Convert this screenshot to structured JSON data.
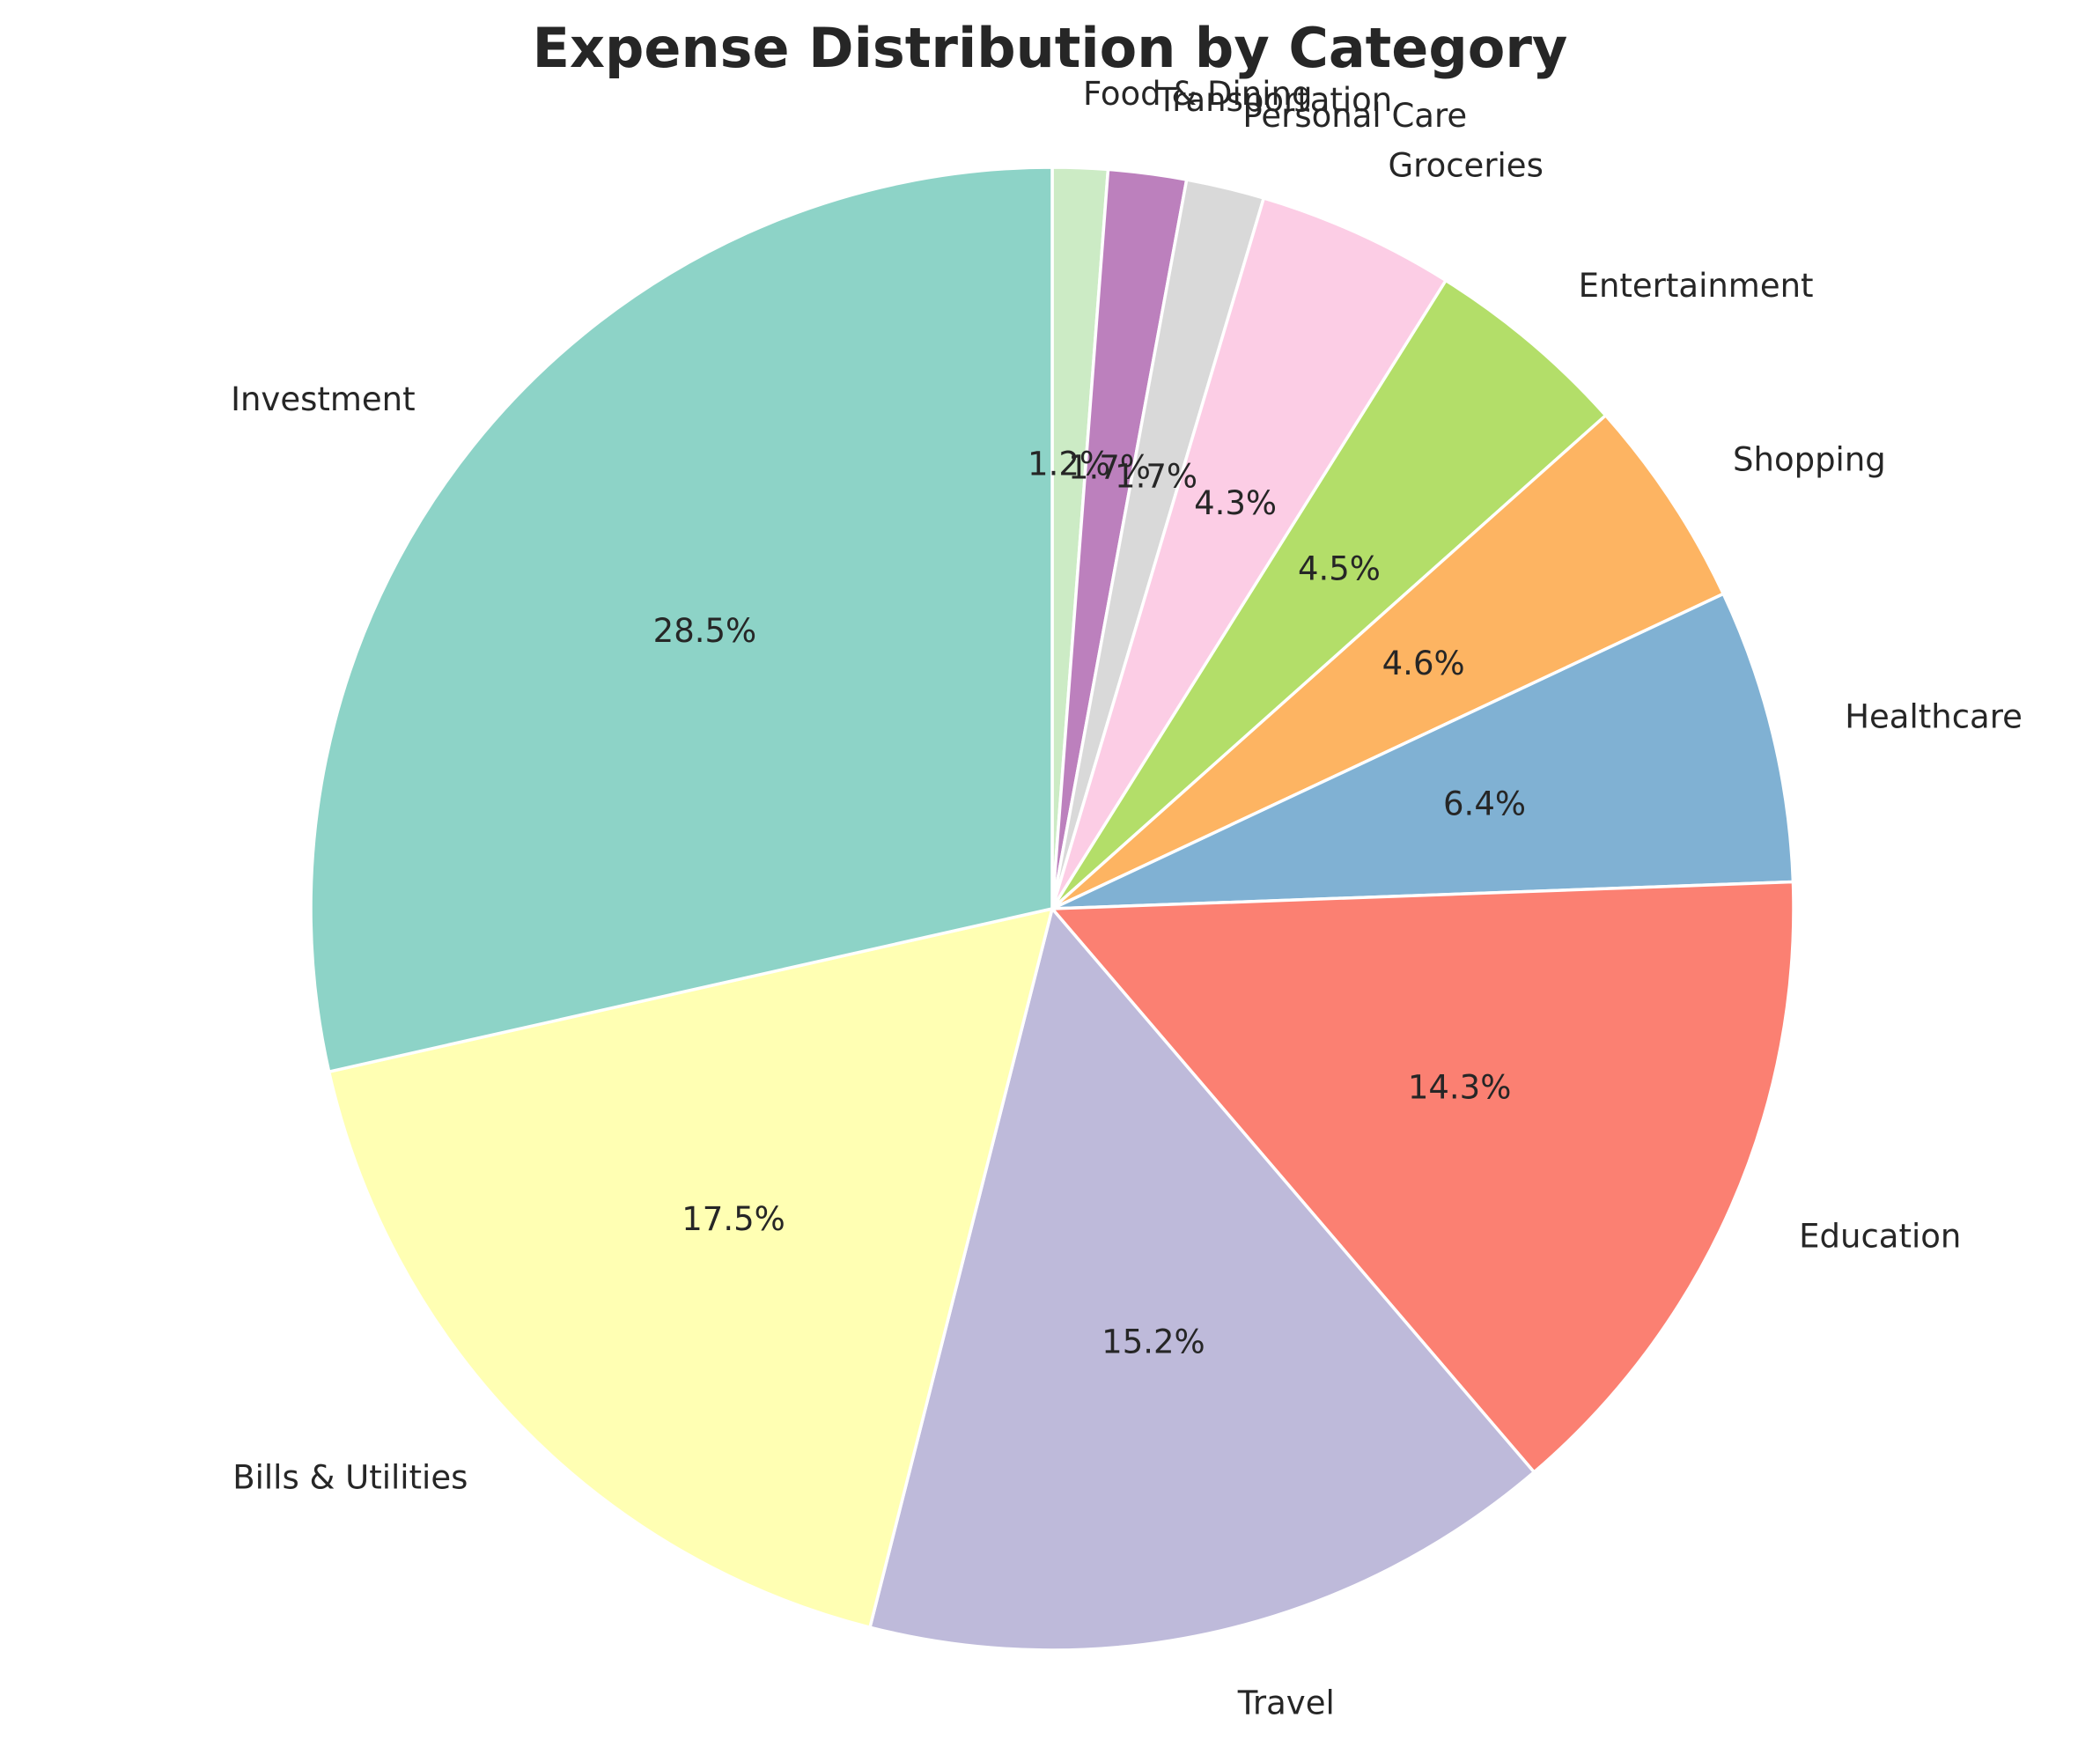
{
  "chart_data": {
    "type": "pie",
    "title": "Expense Distribution by Category",
    "start_angle": 90,
    "direction": "clockwise",
    "slices": [
      {
        "label": "Food & Dining",
        "value": 1.2,
        "pct_label": "1.2%",
        "color": "#ccebc5"
      },
      {
        "label": "Transportation",
        "value": 1.7,
        "pct_label": "1.7%",
        "color": "#bc80bd"
      },
      {
        "label": "Personal Care",
        "value": 1.7,
        "pct_label": "1.7%",
        "color": "#d9d9d9"
      },
      {
        "label": "Groceries",
        "value": 4.3,
        "pct_label": "4.3%",
        "color": "#fccde5"
      },
      {
        "label": "Entertainment",
        "value": 4.5,
        "pct_label": "4.5%",
        "color": "#b3de69"
      },
      {
        "label": "Shopping",
        "value": 4.6,
        "pct_label": "4.6%",
        "color": "#fdb462"
      },
      {
        "label": "Healthcare",
        "value": 6.4,
        "pct_label": "6.4%",
        "color": "#80b1d3"
      },
      {
        "label": "Education",
        "value": 14.3,
        "pct_label": "14.3%",
        "color": "#fb8072"
      },
      {
        "label": "Travel",
        "value": 15.2,
        "pct_label": "15.2%",
        "color": "#bebada"
      },
      {
        "label": "Bills & Utilities",
        "value": 17.5,
        "pct_label": "17.5%",
        "color": "#ffffb3"
      },
      {
        "label": "Investment",
        "value": 28.5,
        "pct_label": "28.5%",
        "color": "#8dd3c7"
      }
    ]
  }
}
